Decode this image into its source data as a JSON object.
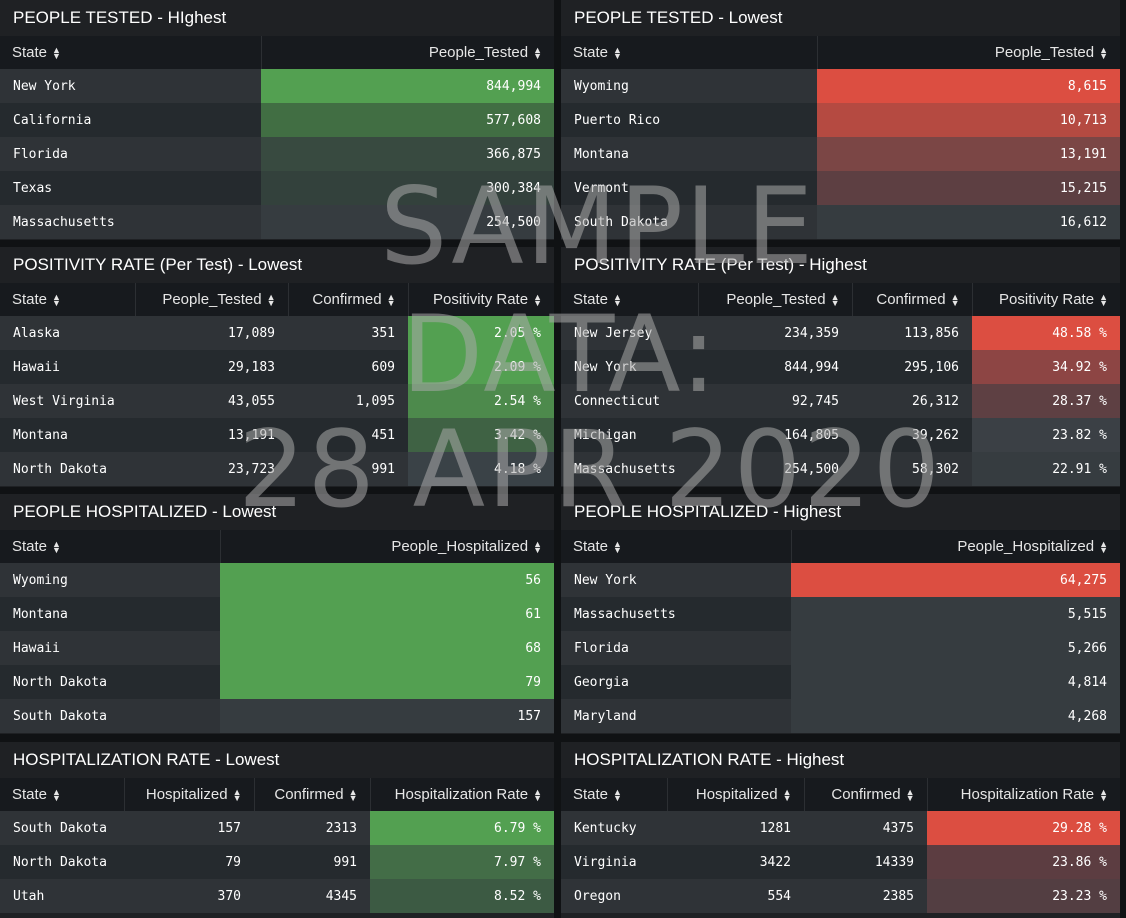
{
  "colors": {
    "green_strong": "#53a051",
    "red_strong": "#dc4e41",
    "neutral_dark": "#2f3337",
    "neutral_light": "#252a2e"
  },
  "watermark": {
    "line1": "SAMPLE",
    "line2": "DATA:",
    "line3": "28 APR 2020"
  },
  "panels": {
    "tested_high": {
      "title": "PEOPLE TESTED - HIghest",
      "headers": [
        "State",
        "People_Tested"
      ],
      "rows": [
        [
          "New York",
          "844,994"
        ],
        [
          "California",
          "577,608"
        ],
        [
          "Florida",
          "366,875"
        ],
        [
          "Texas",
          "300,384"
        ],
        [
          "Massachusetts",
          "254,500"
        ]
      ]
    },
    "tested_low": {
      "title": "PEOPLE TESTED - Lowest",
      "headers": [
        "State",
        "People_Tested"
      ],
      "rows": [
        [
          "Wyoming",
          "8,615"
        ],
        [
          "Puerto Rico",
          "10,713"
        ],
        [
          "Montana",
          "13,191"
        ],
        [
          "Vermont",
          "15,215"
        ],
        [
          "South Dakota",
          "16,612"
        ]
      ]
    },
    "positivity_low": {
      "title": "POSITIVITY RATE (Per Test) - Lowest",
      "headers": [
        "State",
        "People_Tested",
        "Confirmed",
        "Positivity Rate"
      ],
      "rows": [
        [
          "Alaska",
          "17,089",
          "351",
          "2.05 %"
        ],
        [
          "Hawaii",
          "29,183",
          "609",
          "2.09 %"
        ],
        [
          "West Virginia",
          "43,055",
          "1,095",
          "2.54 %"
        ],
        [
          "Montana",
          "13,191",
          "451",
          "3.42 %"
        ],
        [
          "North Dakota",
          "23,723",
          "991",
          "4.18 %"
        ]
      ]
    },
    "positivity_high": {
      "title": "POSITIVITY RATE (Per Test) - Highest",
      "headers": [
        "State",
        "People_Tested",
        "Confirmed",
        "Positivity Rate"
      ],
      "rows": [
        [
          "New Jersey",
          "234,359",
          "113,856",
          "48.58 %"
        ],
        [
          "New York",
          "844,994",
          "295,106",
          "34.92 %"
        ],
        [
          "Connecticut",
          "92,745",
          "26,312",
          "28.37 %"
        ],
        [
          "Michigan",
          "164,805",
          "39,262",
          "23.82 %"
        ],
        [
          "Massachusetts",
          "254,500",
          "58,302",
          "22.91 %"
        ]
      ]
    },
    "hosp_low": {
      "title": "PEOPLE HOSPITALIZED - Lowest",
      "headers": [
        "State",
        "People_Hospitalized"
      ],
      "rows": [
        [
          "Wyoming",
          "56"
        ],
        [
          "Montana",
          "61"
        ],
        [
          "Hawaii",
          "68"
        ],
        [
          "North Dakota",
          "79"
        ],
        [
          "South Dakota",
          "157"
        ]
      ]
    },
    "hosp_high": {
      "title": "PEOPLE HOSPITALIZED - Highest",
      "headers": [
        "State",
        "People_Hospitalized"
      ],
      "rows": [
        [
          "New York",
          "64,275"
        ],
        [
          "Massachusetts",
          "5,515"
        ],
        [
          "Florida",
          "5,266"
        ],
        [
          "Georgia",
          "4,814"
        ],
        [
          "Maryland",
          "4,268"
        ]
      ]
    },
    "hosprate_low": {
      "title": "HOSPITALIZATION RATE - Lowest",
      "headers": [
        "State",
        "Hospitalized",
        "Confirmed",
        "Hospitalization Rate"
      ],
      "rows": [
        [
          "South Dakota",
          "157",
          "2313",
          "6.79 %"
        ],
        [
          "North Dakota",
          "79",
          "991",
          "7.97 %"
        ],
        [
          "Utah",
          "370",
          "4345",
          "8.52 %"
        ]
      ]
    },
    "hosprate_high": {
      "title": "HOSPITALIZATION RATE - Highest",
      "headers": [
        "State",
        "Hospitalized",
        "Confirmed",
        "Hospitalization Rate"
      ],
      "rows": [
        [
          "Kentucky",
          "1281",
          "4375",
          "29.28 %"
        ],
        [
          "Virginia",
          "3422",
          "14339",
          "23.86 %"
        ],
        [
          "Oregon",
          "554",
          "2385",
          "23.23 %"
        ]
      ]
    }
  }
}
